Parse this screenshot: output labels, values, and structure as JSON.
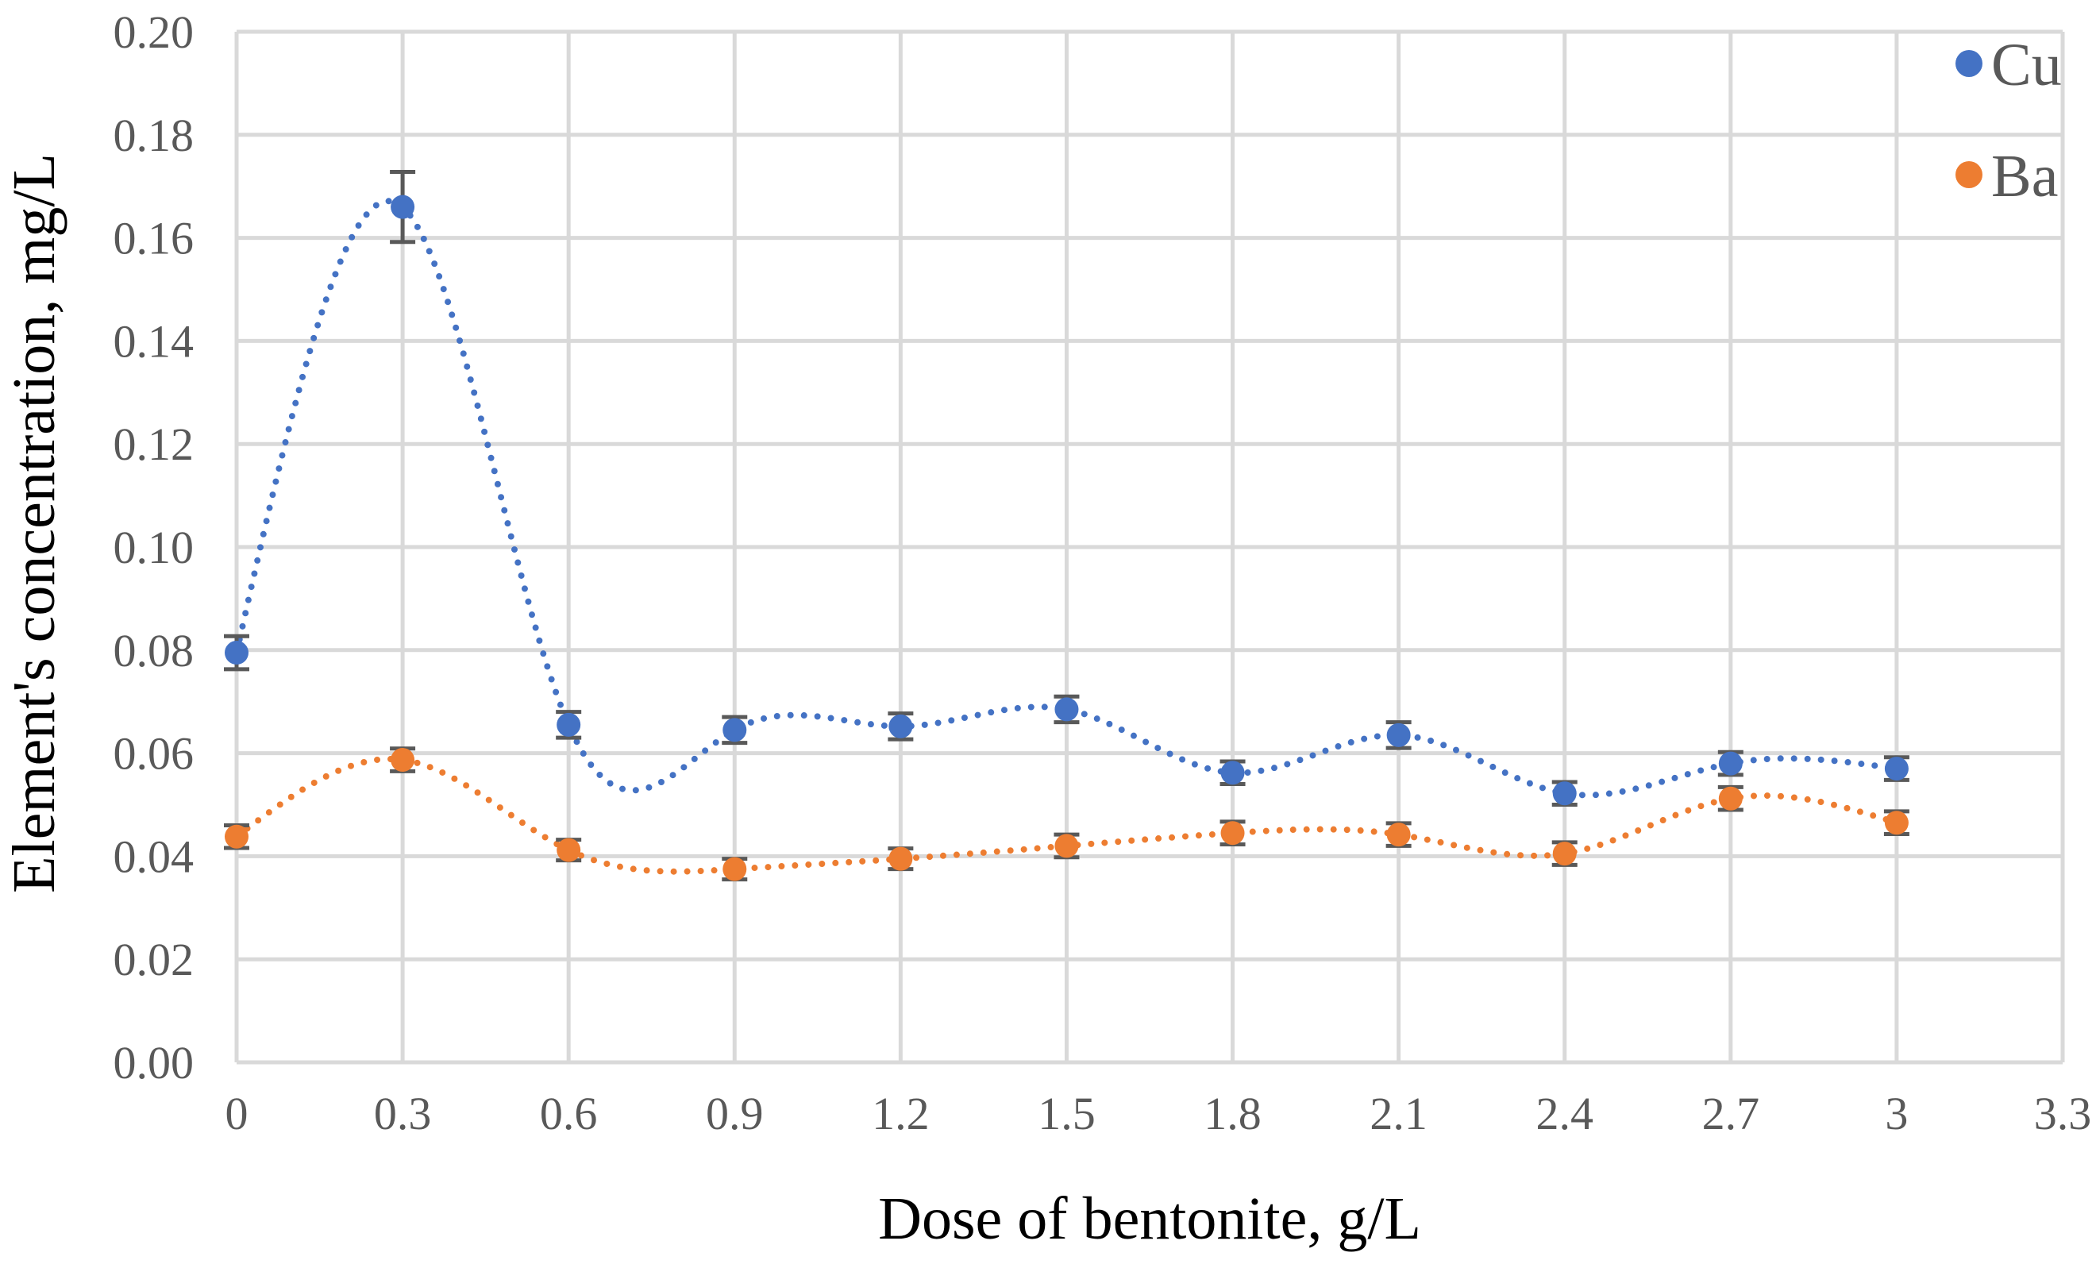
{
  "chart_data": {
    "type": "scatter",
    "title": "",
    "xlabel": "Dose of bentonite, g/L",
    "ylabel": "Element's concentration, mg/L",
    "xlim": [
      0,
      3.3
    ],
    "ylim": [
      0,
      0.2
    ],
    "x_ticks": [
      "0",
      "0.3",
      "0.6",
      "0.9",
      "1.2",
      "1.5",
      "1.8",
      "2.1",
      "2.4",
      "2.7",
      "3",
      "3.3"
    ],
    "y_ticks": [
      "0.00",
      "0.02",
      "0.04",
      "0.06",
      "0.08",
      "0.10",
      "0.12",
      "0.14",
      "0.16",
      "0.18",
      "0.20"
    ],
    "grid": true,
    "legend_position": "top-right",
    "series": [
      {
        "name": "Cu",
        "color": "#4472c4",
        "x": [
          0,
          0.3,
          0.6,
          0.9,
          1.2,
          1.5,
          1.8,
          2.1,
          2.4,
          2.7,
          3.0
        ],
        "y": [
          0.0795,
          0.166,
          0.0655,
          0.0645,
          0.0652,
          0.0685,
          0.0562,
          0.0635,
          0.0522,
          0.058,
          0.057
        ],
        "error": [
          0.0032,
          0.0068,
          0.0025,
          0.0025,
          0.0025,
          0.0025,
          0.0022,
          0.0025,
          0.0022,
          0.0022,
          0.0022
        ],
        "trendline": "dotted"
      },
      {
        "name": "Ba",
        "color": "#ed7d31",
        "x": [
          0,
          0.3,
          0.6,
          0.9,
          1.2,
          1.5,
          1.8,
          2.1,
          2.4,
          2.7,
          3.0
        ],
        "y": [
          0.0438,
          0.0587,
          0.0412,
          0.0375,
          0.0395,
          0.042,
          0.0445,
          0.0442,
          0.0405,
          0.0512,
          0.0465
        ],
        "error": [
          0.0022,
          0.0022,
          0.002,
          0.002,
          0.002,
          0.0022,
          0.0022,
          0.0022,
          0.0022,
          0.0022,
          0.0022
        ],
        "trendline": "dotted"
      }
    ]
  }
}
